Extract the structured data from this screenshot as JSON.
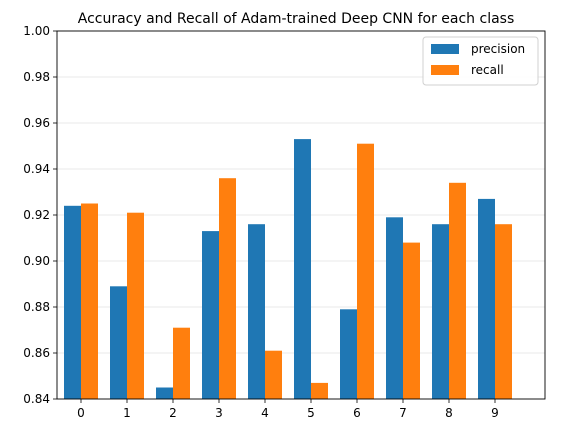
{
  "chart_data": {
    "type": "bar",
    "title": "Accuracy and Recall of Adam-trained Deep CNN for each class",
    "xlabel": "",
    "ylabel": "",
    "categories": [
      "0",
      "1",
      "2",
      "3",
      "4",
      "5",
      "6",
      "7",
      "8",
      "9"
    ],
    "series": [
      {
        "name": "precision",
        "color": "#1f77b4",
        "values": [
          0.924,
          0.889,
          0.845,
          0.913,
          0.916,
          0.953,
          0.879,
          0.919,
          0.916,
          0.927
        ]
      },
      {
        "name": "recall",
        "color": "#ff7f0e",
        "values": [
          0.925,
          0.921,
          0.871,
          0.936,
          0.861,
          0.847,
          0.951,
          0.908,
          0.934,
          0.916
        ]
      }
    ],
    "ylim": [
      0.84,
      1.0
    ],
    "yticks": [
      "0.84",
      "0.86",
      "0.88",
      "0.90",
      "0.92",
      "0.94",
      "0.96",
      "0.98",
      "1.00"
    ],
    "grid": "y",
    "legend_position": "top-right"
  }
}
